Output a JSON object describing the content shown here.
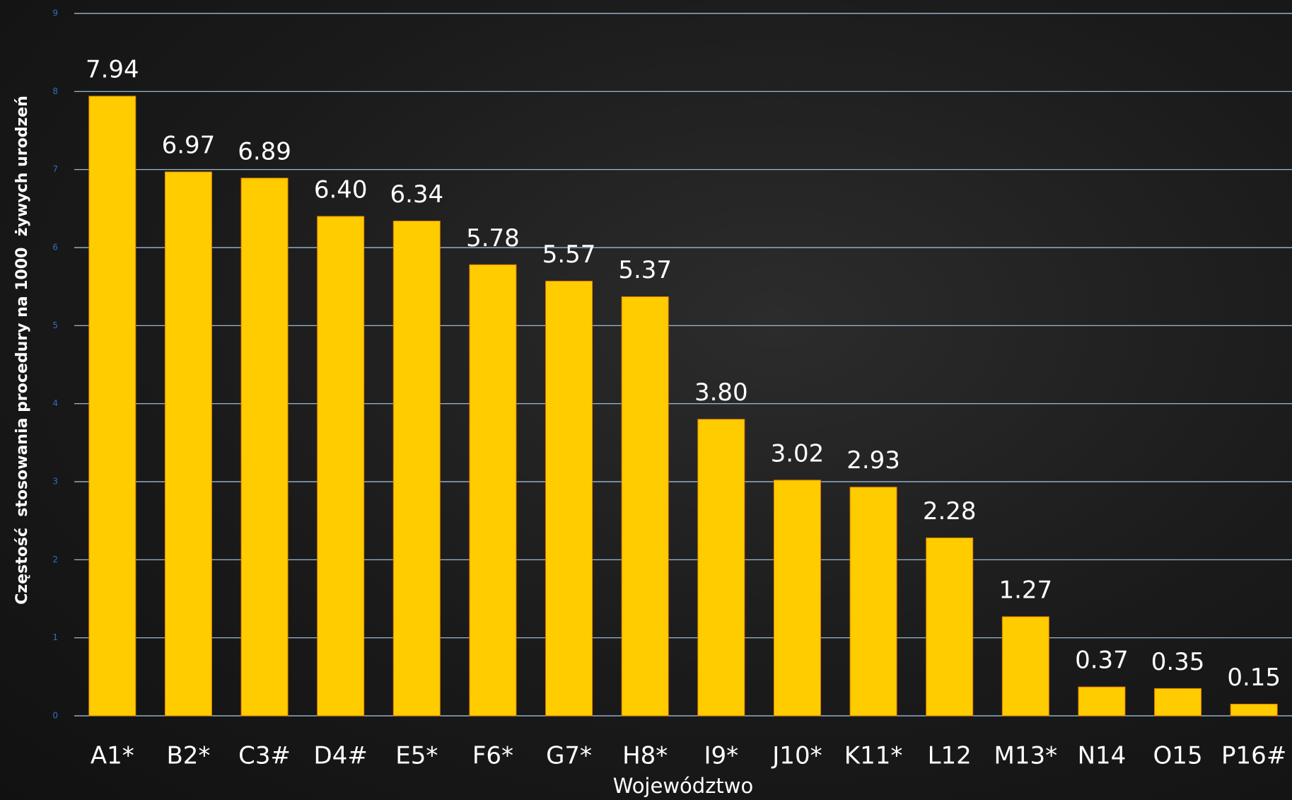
{
  "chart_data": {
    "type": "bar",
    "y_label": "Częstość  stosowania procedury na 1000  żywych urodzeń",
    "x_label": "Województwo",
    "categories": [
      "A1*",
      "B2*",
      "C3#",
      "D4#",
      "E5*",
      "F6*",
      "G7*",
      "H8*",
      "I9*",
      "J10*",
      "K11*",
      "L12",
      "M13*",
      "N14",
      "O15",
      "P16#"
    ],
    "values": [
      7.94,
      6.97,
      6.89,
      6.4,
      6.34,
      5.78,
      5.57,
      5.37,
      3.8,
      3.02,
      2.93,
      2.28,
      1.27,
      0.37,
      0.35,
      0.15
    ],
    "value_labels": [
      "7.94",
      "6.97",
      "6.89",
      "6.40",
      "6.34",
      "5.78",
      "5.57",
      "5.37",
      "3.80",
      "3.02",
      "2.93",
      "2.28",
      "1.27",
      "0.37",
      "0.35",
      "0.15"
    ],
    "color": "#ffcc00",
    "ylim": [
      0,
      9
    ],
    "yticks": [
      0,
      1,
      2,
      3,
      4,
      5,
      6,
      7,
      8,
      9
    ],
    "grid": true
  }
}
